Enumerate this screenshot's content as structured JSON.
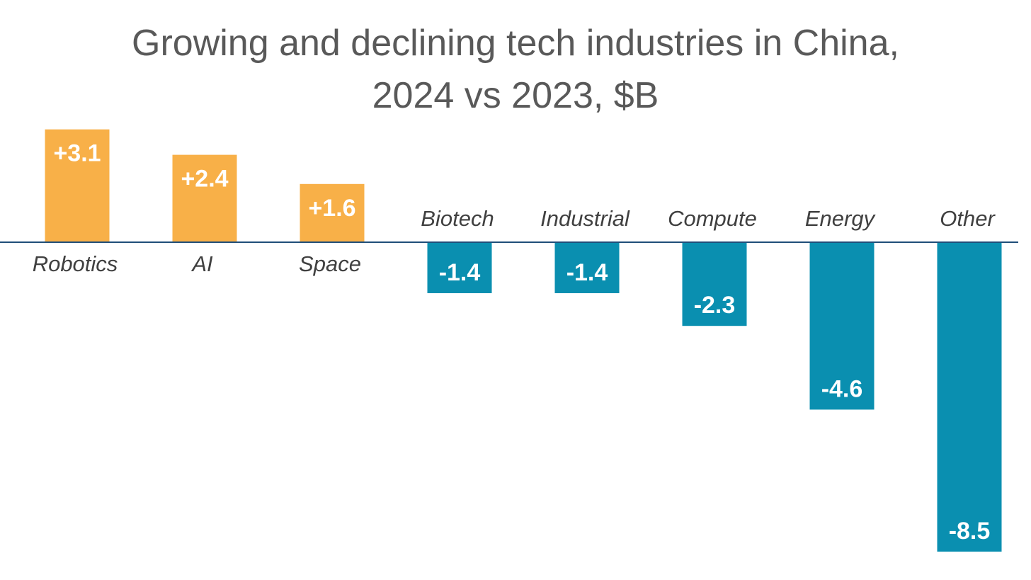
{
  "chart_data": {
    "type": "bar",
    "title_lines": [
      "Growing and declining tech industries in China,",
      "2024 vs 2023, $B"
    ],
    "xlabel": "",
    "ylabel": "",
    "categories": [
      "Robotics",
      "AI",
      "Space",
      "Biotech",
      "Industrial",
      "Compute",
      "Energy",
      "Other"
    ],
    "values": [
      3.1,
      2.4,
      1.6,
      -1.4,
      -1.4,
      -2.3,
      -4.6,
      -8.5
    ],
    "value_labels": [
      "+3.1",
      "+2.4",
      "+1.6",
      "-1.4",
      "-1.4",
      "-2.3",
      "-4.6",
      "-8.5"
    ],
    "ylim": [
      -8.5,
      3.1
    ],
    "grid": false,
    "legend": "none",
    "colors": {
      "positive": "#F8B048",
      "negative": "#0A8FB0",
      "axis": "#1F4E79",
      "title": "#595959",
      "category_text": "#404040",
      "value_text": "#FFFFFF"
    }
  }
}
